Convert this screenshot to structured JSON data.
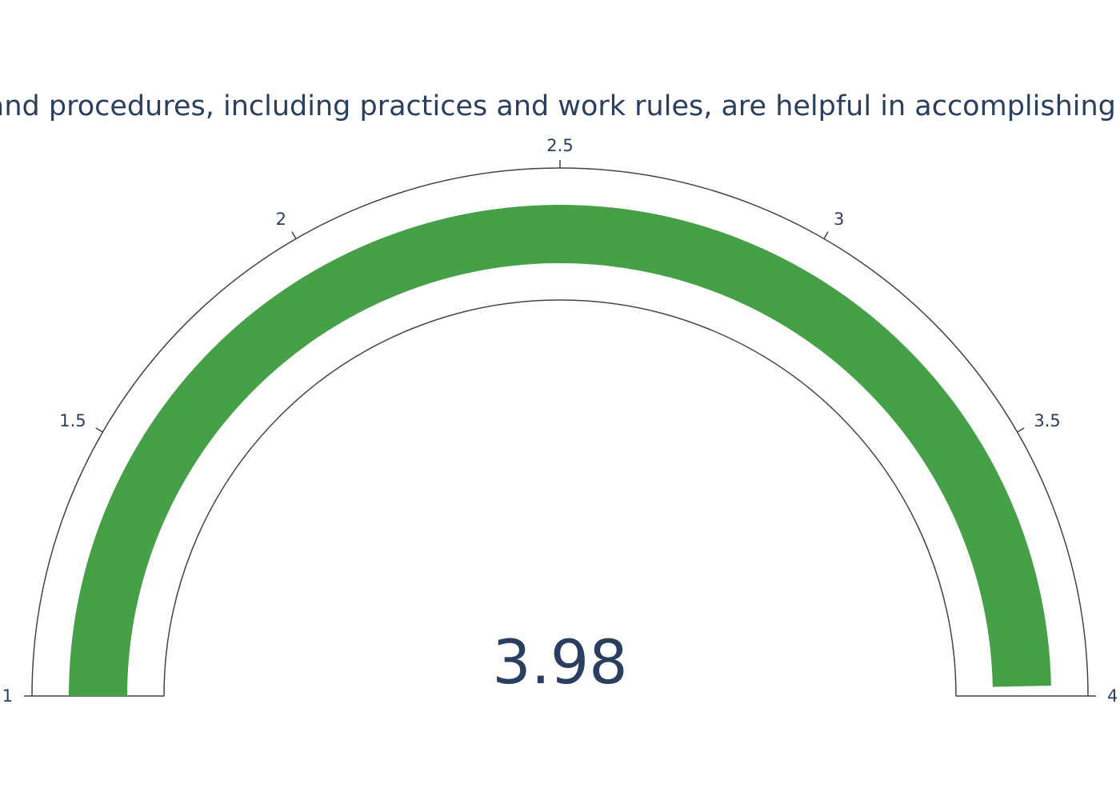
{
  "chart_data": {
    "type": "gauge",
    "title": "Policies and procedures, including practices and work rules, are helpful in accomplishing my work",
    "value": 3.98,
    "value_label": "3.98",
    "range": [
      1,
      4
    ],
    "ticks": [
      1,
      1.5,
      2,
      2.5,
      3,
      3.5,
      4
    ],
    "tick_labels": [
      "1",
      "1.5",
      "2",
      "2.5",
      "3",
      "3.5",
      "4"
    ],
    "bar_color": "#45a047",
    "text_color": "#2a3f5f",
    "outline_color": "#444444"
  }
}
